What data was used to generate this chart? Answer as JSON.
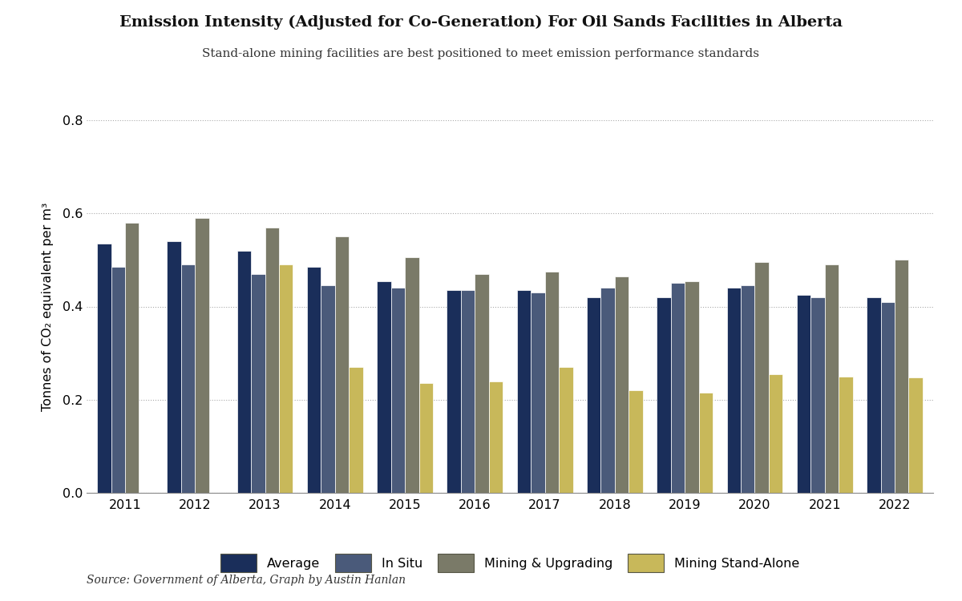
{
  "title": "Emission Intensity (Adjusted for Co-Generation) For Oil Sands Facilities in Alberta",
  "subtitle": "Stand-alone mining facilities are best positioned to meet emission performance standards",
  "ylabel": "Tonnes of CO₂ equivalent per m³",
  "source": "Source: Government of Alberta, Graph by Austin Hanlan",
  "years": [
    2011,
    2012,
    2013,
    2014,
    2015,
    2016,
    2017,
    2018,
    2019,
    2020,
    2021,
    2022
  ],
  "average": [
    0.535,
    0.54,
    0.52,
    0.485,
    0.455,
    0.435,
    0.435,
    0.42,
    0.42,
    0.44,
    0.425,
    0.42
  ],
  "in_situ": [
    0.485,
    0.49,
    0.47,
    0.445,
    0.44,
    0.435,
    0.43,
    0.44,
    0.45,
    0.445,
    0.42,
    0.41
  ],
  "mining_upgrading": [
    0.58,
    0.59,
    0.57,
    0.55,
    0.505,
    0.47,
    0.475,
    0.465,
    0.455,
    0.495,
    0.49,
    0.5
  ],
  "mining_standalone": [
    null,
    null,
    0.49,
    0.27,
    0.235,
    0.24,
    0.27,
    0.22,
    0.215,
    0.255,
    0.25,
    0.248
  ],
  "colors": {
    "average": "#1a2e5a",
    "in_situ": "#4a5a7a",
    "mining_upgrading": "#7a7a68",
    "mining_standalone": "#c8b85a"
  },
  "legend_labels": [
    "Average",
    "In Situ",
    "Mining & Upgrading",
    "Mining Stand-Alone"
  ],
  "ylim": [
    0,
    0.8
  ],
  "yticks": [
    0,
    0.2,
    0.4,
    0.6,
    0.8
  ],
  "background_color": "#ffffff"
}
